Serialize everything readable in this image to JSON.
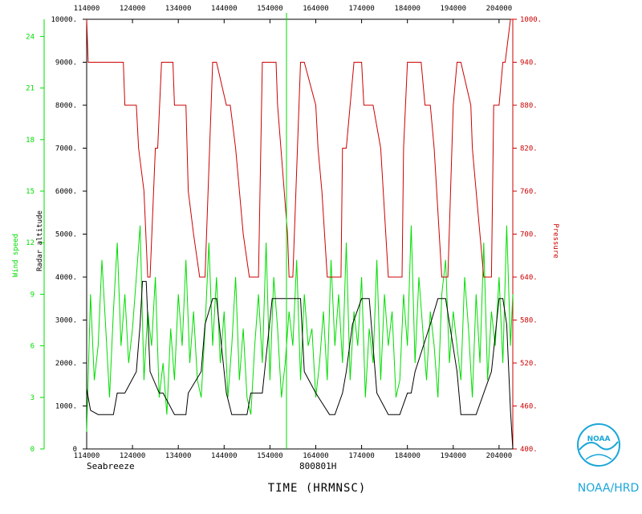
{
  "colors": {
    "wind": "#00dd00",
    "altitude": "#000000",
    "pressure": "#cc0000",
    "logo": "#1aa6d8"
  },
  "footer": {
    "left": "Seabreeze",
    "center": "800801H",
    "xlabel": "TIME (HRMNSC)",
    "logo_text": "NOAA",
    "logo_caption": "NOAA/HRD"
  },
  "chart_data": {
    "type": "line",
    "xlabel": "TIME (HRMNSC)",
    "x_ticks": [
      "114000",
      "124000",
      "134000",
      "144000",
      "154000",
      "164000",
      "174000",
      "184000",
      "194000",
      "204000"
    ],
    "x_range": [
      "114000",
      "205800"
    ],
    "grid": false,
    "axes": [
      {
        "name": "Wind speed",
        "side": "left-outer",
        "color": "#00dd00",
        "ylim": [
          0,
          25
        ],
        "ticks": [
          "0",
          "3",
          "6",
          "9",
          "12",
          "15",
          "18",
          "21",
          "24"
        ]
      },
      {
        "name": "Radar altitude",
        "side": "left-inner",
        "color": "#000000",
        "ylim": [
          0,
          10000
        ],
        "ticks": [
          "0",
          "1000.",
          "2000.",
          "3000.",
          "4000.",
          "5000.",
          "6000.",
          "7000.",
          "8000.",
          "9000.",
          "10000."
        ]
      },
      {
        "name": "Pressure",
        "side": "right",
        "color": "#cc0000",
        "ylim": [
          400,
          1000
        ],
        "ticks": [
          "400.",
          "460.",
          "520.",
          "580.",
          "640.",
          "700.",
          "760.",
          "820.",
          "880.",
          "940.",
          "1000."
        ]
      }
    ],
    "series": [
      {
        "name": "Radar altitude",
        "axis": "Radar altitude",
        "color": "#000000",
        "times": [
          "114000",
          "114500",
          "115500",
          "121500",
          "122000",
          "123000",
          "124500",
          "125000",
          "125300",
          "125800",
          "130300",
          "131500",
          "132000",
          "133500",
          "135000",
          "135300",
          "141000",
          "141500",
          "142500",
          "143000",
          "144300",
          "145000",
          "151000",
          "151500",
          "153000",
          "154300",
          "154800",
          "162000",
          "162500",
          "164000",
          "165800",
          "170500",
          "171500",
          "172000",
          "172800",
          "174000",
          "175000",
          "180000",
          "181500",
          "183000",
          "184000",
          "184500",
          "185000",
          "191000",
          "192000",
          "193000",
          "194500",
          "195000",
          "201000",
          "202000",
          "203000",
          "204000",
          "204500",
          "205000",
          "205500",
          "205800"
        ],
        "values": [
          1400,
          900,
          800,
          800,
          1300,
          1300,
          1800,
          2900,
          3900,
          3900,
          1800,
          1300,
          1300,
          800,
          800,
          1300,
          1800,
          2900,
          3500,
          3500,
          1300,
          800,
          800,
          1300,
          1300,
          3500,
          3500,
          3500,
          1800,
          1300,
          800,
          800,
          1300,
          1800,
          2900,
          3500,
          3500,
          1300,
          800,
          800,
          1300,
          1300,
          1800,
          2900,
          3500,
          3500,
          1800,
          800,
          800,
          1300,
          1800,
          3500,
          3500,
          2900,
          900,
          0
        ]
      },
      {
        "name": "Pressure",
        "axis": "Pressure",
        "color": "#cc0000",
        "times": [
          "114000",
          "114200",
          "115000",
          "122800",
          "123000",
          "124500",
          "124800",
          "125500",
          "130000",
          "130300",
          "131000",
          "131300",
          "131800",
          "132300",
          "133300",
          "133500",
          "135000",
          "135300",
          "140000",
          "140800",
          "141500",
          "142500",
          "143000",
          "144300",
          "144800",
          "145500",
          "150500",
          "151300",
          "152500",
          "153000",
          "154800",
          "155000",
          "160300",
          "160500",
          "161000",
          "162000",
          "162500",
          "164000",
          "164300",
          "164800",
          "165500",
          "171300",
          "171500",
          "172000",
          "173000",
          "174000",
          "174300",
          "175500",
          "180500",
          "181500",
          "183300",
          "183500",
          "184000",
          "185800",
          "190300",
          "191000",
          "191500",
          "192500",
          "193300",
          "194000",
          "194500",
          "195000",
          "200300",
          "200500",
          "201000",
          "202000",
          "203000",
          "203300",
          "204000",
          "204500",
          "204800",
          "205500",
          "205800"
        ],
        "values": [
          1000,
          940,
          940,
          940,
          880,
          880,
          820,
          760,
          640,
          640,
          820,
          820,
          940,
          940,
          940,
          880,
          880,
          760,
          700,
          640,
          640,
          940,
          940,
          880,
          880,
          820,
          700,
          640,
          640,
          940,
          940,
          880,
          700,
          640,
          640,
          940,
          940,
          880,
          820,
          760,
          640,
          640,
          820,
          820,
          940,
          940,
          880,
          880,
          820,
          640,
          640,
          820,
          940,
          940,
          880,
          880,
          820,
          640,
          640,
          880,
          940,
          940,
          880,
          820,
          760,
          640,
          640,
          880,
          880,
          940,
          940,
          1000,
          1000
        ]
      },
      {
        "name": "Wind speed",
        "axis": "Wind speed",
        "color": "#00dd00",
        "times": [
          "114000",
          "114500",
          "115000",
          "115500",
          "120000",
          "120500",
          "121000",
          "121500",
          "122000",
          "122500",
          "123000",
          "123500",
          "124000",
          "124500",
          "125000",
          "125500",
          "130000",
          "130500",
          "131000",
          "131500",
          "132000",
          "132500",
          "133000",
          "133500",
          "134000",
          "134500",
          "135000",
          "135500",
          "140000",
          "140500",
          "141000",
          "141500",
          "142000",
          "142500",
          "143000",
          "143500",
          "144000",
          "144500",
          "145000",
          "145500",
          "150000",
          "150500",
          "151000",
          "151500",
          "152000",
          "152500",
          "153000",
          "153500",
          "154000",
          "154500",
          "155000",
          "155500",
          "160000",
          "160500",
          "161000",
          "161500",
          "162000",
          "162500",
          "163000",
          "163500",
          "164000",
          "164500",
          "165000",
          "165500",
          "170000",
          "170500",
          "171000",
          "171500",
          "172000",
          "172500",
          "173000",
          "173500",
          "174000",
          "174500",
          "175000",
          "175500",
          "180000",
          "180500",
          "181000",
          "181500",
          "182000",
          "182500",
          "183000",
          "183500",
          "184000",
          "184500",
          "185000",
          "185500",
          "190000",
          "190500",
          "191000",
          "191500",
          "192000",
          "192500",
          "193000",
          "193500",
          "194000",
          "194500",
          "195000",
          "195500",
          "200000",
          "200500",
          "201000",
          "201500",
          "202000",
          "202500",
          "203000",
          "203500",
          "204000",
          "204500",
          "205000",
          "205500",
          "205800"
        ],
        "values": [
          1,
          9,
          4,
          6,
          11,
          7,
          3,
          8,
          12,
          6,
          9,
          5,
          7,
          10,
          13,
          4,
          8,
          6,
          10,
          3,
          5,
          2,
          7,
          4,
          9,
          6,
          11,
          5,
          8,
          4,
          3,
          7,
          12,
          6,
          10,
          5,
          8,
          3,
          6,
          10,
          4,
          7,
          3,
          2,
          6,
          9,
          5,
          12,
          4,
          10,
          7,
          3,
          5,
          8,
          6,
          11,
          4,
          9,
          6,
          7,
          3,
          5,
          8,
          4,
          11,
          6,
          9,
          5,
          12,
          4,
          8,
          6,
          10,
          3,
          7,
          5,
          11,
          4,
          9,
          6,
          8,
          3,
          4,
          9,
          6,
          13,
          5,
          10,
          7,
          4,
          8,
          6,
          3,
          9,
          11,
          5,
          8,
          6,
          4,
          10,
          7,
          3,
          9,
          5,
          12,
          4,
          8,
          6,
          10,
          5,
          13,
          6,
          9
        ]
      }
    ]
  }
}
